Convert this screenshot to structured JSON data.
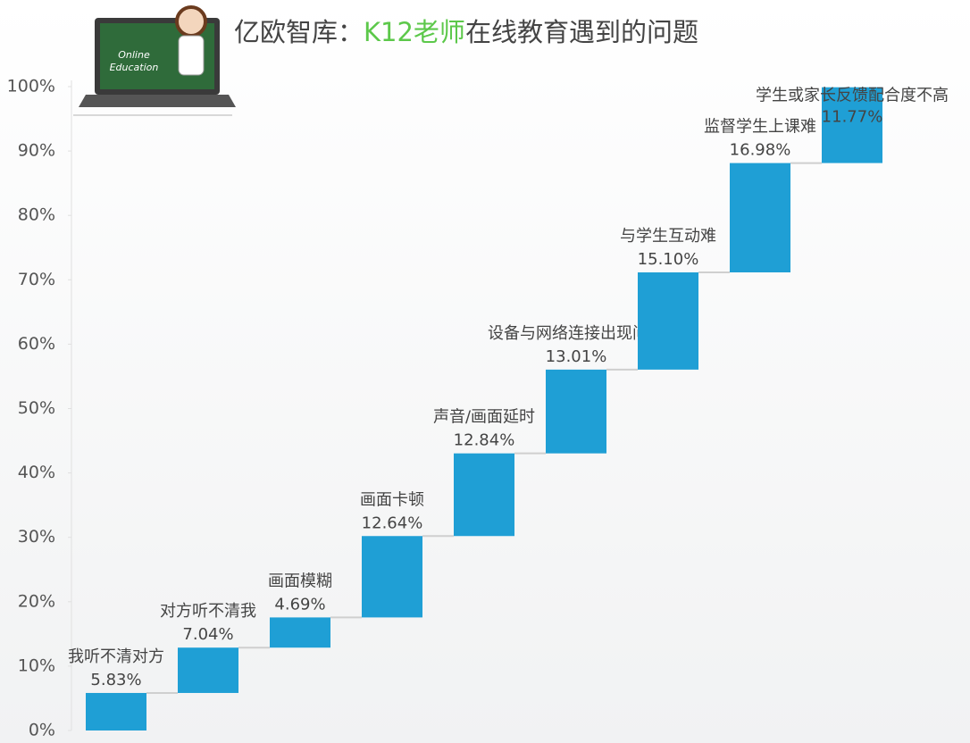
{
  "chart_data": {
    "type": "waterfall",
    "title": [
      "亿欧智库：",
      "K12老师",
      "在线教育遇到的问题"
    ],
    "title_highlight_color": "#5cc84a",
    "illustration_text": [
      "Online",
      "Education"
    ],
    "categories": [
      "我听不清对方",
      "对方听不清我",
      "画面模糊",
      "画面卡顿",
      "声音/画面延时",
      "设备与网络连接出现问题",
      "与学生互动难",
      "监督学生上课难",
      "学生或家长反馈配合度不高"
    ],
    "values": [
      5.83,
      7.04,
      4.69,
      12.64,
      12.84,
      13.01,
      15.1,
      16.98,
      11.77
    ],
    "value_labels": [
      "5.83%",
      "7.04%",
      "4.69%",
      "12.64%",
      "12.84%",
      "13.01%",
      "15.10%",
      "16.98%",
      "11.77%"
    ],
    "color": "#1f9fd5",
    "ylim": [
      0,
      100
    ],
    "yticks": [
      {
        "value": 0,
        "label": "0%"
      },
      {
        "value": 10,
        "label": "10%"
      },
      {
        "value": 20,
        "label": "20%"
      },
      {
        "value": 30,
        "label": "30%"
      },
      {
        "value": 40,
        "label": "40%"
      },
      {
        "value": 50,
        "label": "50%"
      },
      {
        "value": 60,
        "label": "60%"
      },
      {
        "value": 70,
        "label": "70%"
      },
      {
        "value": 80,
        "label": "80%"
      },
      {
        "value": 90,
        "label": "90%"
      },
      {
        "value": 100,
        "label": "100%"
      }
    ],
    "grid": false
  }
}
